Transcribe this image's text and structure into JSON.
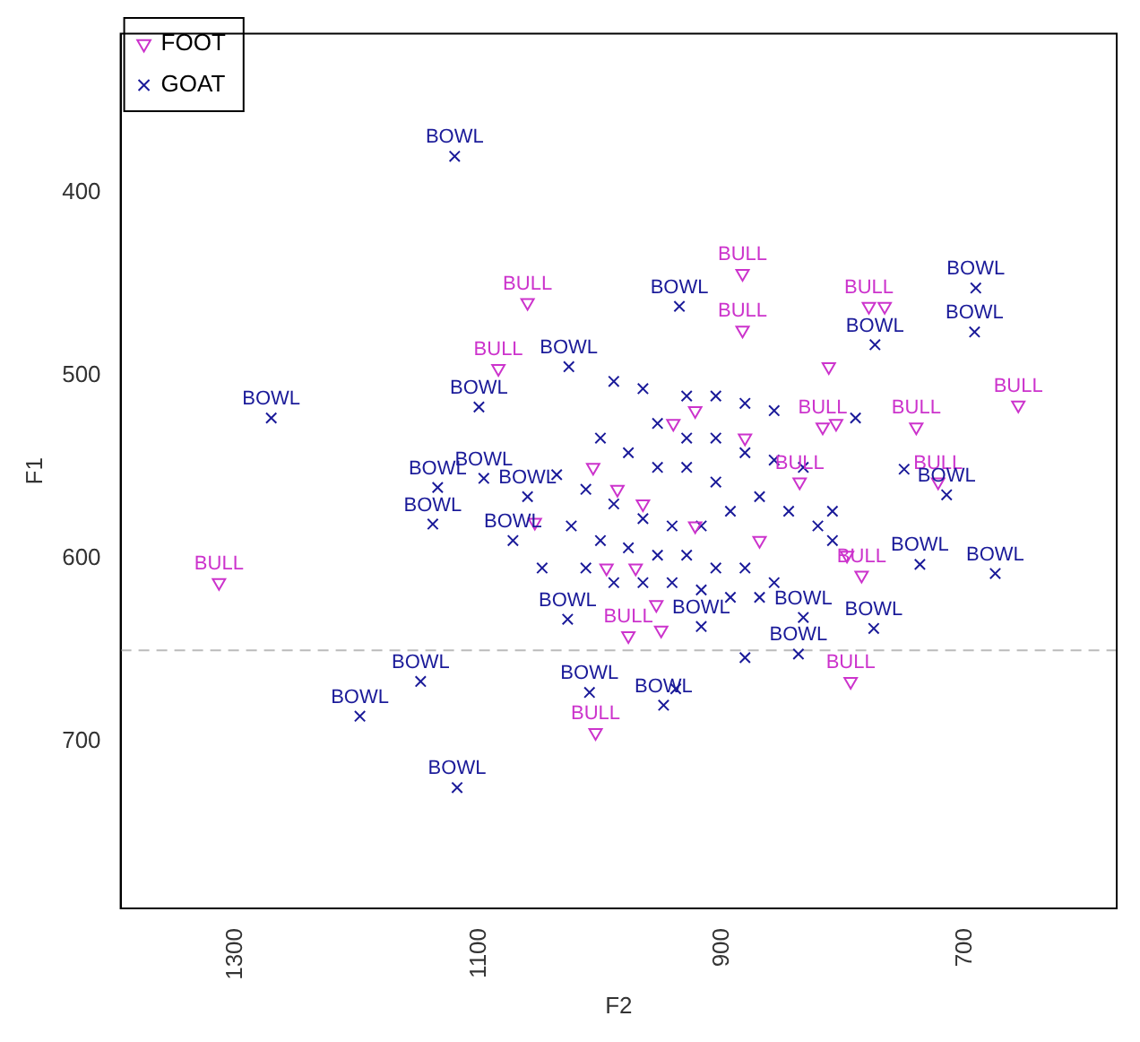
{
  "chart_data": {
    "type": "scatter",
    "xlabel": "F2",
    "ylabel": "F1",
    "xlim": [
      1395,
      575
    ],
    "xticks": [
      1300,
      1100,
      900,
      700
    ],
    "ylim": [
      791,
      313
    ],
    "yticks": [
      400,
      500,
      600,
      700
    ],
    "grid": false,
    "legend": "top left",
    "ref_lines": [
      {
        "axis": "y",
        "value": 650,
        "color": "#bbbbbb",
        "line_style": "dashed"
      }
    ],
    "series": [
      {
        "name": "FOOT",
        "color": "#cc33cc",
        "marker": "triangle",
        "x": [
          1314,
          1060,
          1084,
          883,
          883,
          779,
          766,
          656,
          817,
          806,
          740,
          722,
          785,
          794,
          1004,
          977,
          950,
          812,
          836,
          1054,
          1006,
          940,
          922,
          986,
          965,
          971,
          922,
          995,
          954,
          881,
          869,
          797
        ],
        "values": [
          613,
          460,
          496,
          444,
          475,
          462,
          462,
          516,
          528,
          526,
          528,
          558,
          609,
          667,
          695,
          642,
          639,
          495,
          558,
          580,
          550,
          526,
          519,
          562,
          570,
          605,
          582,
          605,
          625,
          534,
          590,
          598
        ],
        "value_labels": [
          "BULL",
          "BULL",
          "BULL",
          "BULL",
          "BULL",
          "BULL",
          null,
          "BULL",
          "BULL",
          null,
          "BULL",
          "BULL",
          "BULL",
          "BULL",
          "BULL",
          "BULL",
          null,
          null,
          "BULL",
          null,
          null,
          null,
          null,
          null,
          null,
          null,
          null,
          null,
          null,
          null,
          null,
          null
        ]
      },
      {
        "name": "GOAT",
        "color": "#1a1a99",
        "marker": "cross",
        "x": [
          1120,
          1271,
          935,
          691,
          692,
          1026,
          1100,
          1138,
          1134,
          1096,
          774,
          790,
          750,
          715,
          737,
          675,
          775,
          837,
          881,
          1148,
          1198,
          1118,
          948,
          938,
          1009,
          833,
          917,
          1027,
          989,
          965,
          929,
          905,
          881,
          857,
          953,
          929,
          905,
          881,
          857,
          833,
          1000,
          977,
          953,
          929,
          905,
          1036,
          1012,
          989,
          965,
          941,
          917,
          893,
          869,
          845,
          821,
          809,
          1024,
          1000,
          977,
          953,
          929,
          905,
          881,
          857,
          1012,
          989,
          965,
          941,
          917,
          893,
          869,
          1048,
          1060,
          1072,
          809
        ],
        "values": [
          380,
          523,
          462,
          452,
          476,
          495,
          517,
          581,
          561,
          556,
          483,
          523,
          551,
          565,
          603,
          608,
          638,
          652,
          654,
          667,
          686,
          725,
          680,
          671,
          673,
          632,
          637,
          633,
          503,
          507,
          511,
          511,
          515,
          519,
          526,
          534,
          534,
          542,
          546,
          550,
          534,
          542,
          550,
          550,
          558,
          554,
          562,
          570,
          578,
          582,
          582,
          574,
          566,
          574,
          582,
          590,
          582,
          590,
          594,
          598,
          598,
          605,
          605,
          613,
          605,
          613,
          613,
          613,
          617,
          621,
          621,
          605,
          566,
          590,
          574
        ],
        "value_labels": [
          "BOWL",
          "BOWL",
          "BOWL",
          "BOWL",
          "BOWL",
          "BOWL",
          "BOWL",
          "BOWL",
          "BOWL",
          "BOWL",
          "BOWL",
          null,
          null,
          "BOWL",
          "BOWL",
          "BOWL",
          "BOWL",
          "BOWL",
          null,
          "BOWL",
          "BOWL",
          "BOWL",
          "BOWL",
          null,
          "BOWL",
          "BOWL",
          "BOWL",
          "BOWL",
          null,
          null,
          null,
          null,
          null,
          null,
          null,
          null,
          null,
          null,
          null,
          null,
          null,
          null,
          null,
          null,
          null,
          null,
          null,
          null,
          null,
          null,
          null,
          null,
          null,
          null,
          null,
          null,
          null,
          null,
          null,
          null,
          null,
          null,
          null,
          null,
          null,
          null,
          null,
          null,
          null,
          null,
          null,
          null,
          "BOWL",
          "BOWL",
          null
        ]
      }
    ]
  }
}
